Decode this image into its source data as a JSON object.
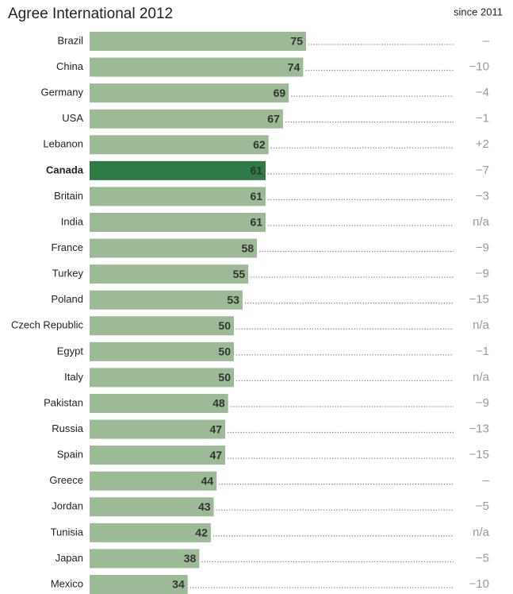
{
  "chart_data": {
    "type": "bar",
    "orientation": "horizontal",
    "title": "Agree International 2012",
    "change_header": "since 2011",
    "categories": [
      "Brazil",
      "China",
      "Germany",
      "USA",
      "Lebanon",
      "Canada",
      "Britain",
      "India",
      "France",
      "Turkey",
      "Poland",
      "Czech Republic",
      "Egypt",
      "Italy",
      "Pakistan",
      "Russia",
      "Spain",
      "Greece",
      "Jordan",
      "Tunisia",
      "Japan",
      "Mexico"
    ],
    "values": [
      75,
      74,
      69,
      67,
      62,
      61,
      61,
      61,
      58,
      55,
      53,
      50,
      50,
      50,
      48,
      47,
      47,
      44,
      43,
      42,
      38,
      34
    ],
    "changes": [
      "–",
      "−10",
      "−4",
      "−1",
      "+2",
      "−7",
      "−3",
      "n/a",
      "−9",
      "−9",
      "−15",
      "n/a",
      "−1",
      "n/a",
      "−9",
      "−13",
      "−15",
      "–",
      "−5",
      "n/a",
      "−5",
      "−10"
    ],
    "color": "#9dba97",
    "highlight_index": 5,
    "highlight_color": "#2f7b45"
  }
}
